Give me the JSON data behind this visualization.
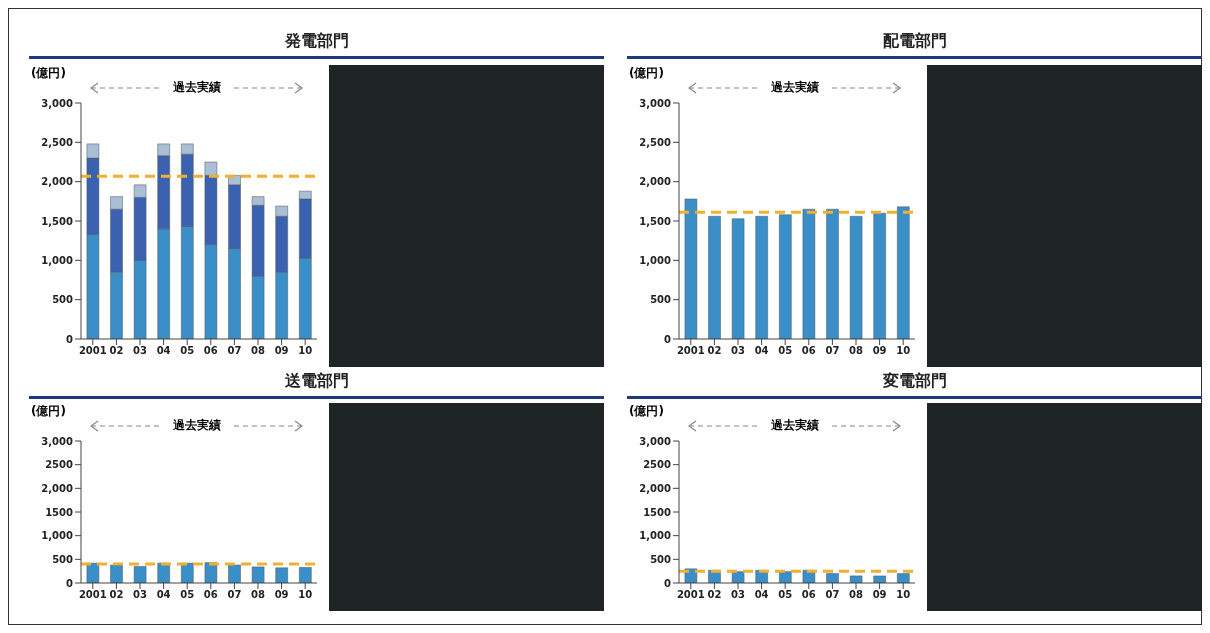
{
  "chart_data": [
    {
      "type": "bar",
      "title": "発電部門",
      "ylabel": "(億円)",
      "annotations": [
        "過去実績"
      ],
      "categories": [
        "2001",
        "02",
        "03",
        "04",
        "05",
        "06",
        "07",
        "08",
        "09",
        "10"
      ],
      "stacked": true,
      "series": [
        {
          "color": "#3a8fc8",
          "values": [
            1330,
            850,
            1000,
            1400,
            1430,
            1200,
            1150,
            800,
            850,
            1030
          ]
        },
        {
          "color": "#3a62b0",
          "values": [
            970,
            800,
            800,
            930,
            920,
            880,
            810,
            900,
            710,
            750
          ]
        },
        {
          "color": "#a9bfd6",
          "values": [
            180,
            160,
            160,
            150,
            130,
            170,
            120,
            110,
            130,
            100
          ]
        }
      ],
      "ylim": [
        0,
        3000
      ],
      "yticks": [
        {
          "value": 0,
          "label": "0"
        },
        {
          "value": 500,
          "label": "500"
        },
        {
          "value": 1000,
          "label": "1,000"
        },
        {
          "value": 1500,
          "label": "1,500"
        },
        {
          "value": 2000,
          "label": "2,000"
        },
        {
          "value": 2500,
          "label": "2,500"
        },
        {
          "value": 3000,
          "label": "3,000"
        }
      ],
      "ref_lines": [
        {
          "axis": "y",
          "value": 2070,
          "color": "#f0b030",
          "line_style": "dashed"
        }
      ],
      "grid": false,
      "legend": false
    },
    {
      "type": "bar",
      "title": "配電部門",
      "ylabel": "(億円)",
      "annotations": [
        "過去実績"
      ],
      "categories": [
        "2001",
        "02",
        "03",
        "04",
        "05",
        "06",
        "07",
        "08",
        "09",
        "10"
      ],
      "color": "#3a8fc8",
      "values": [
        1780,
        1560,
        1530,
        1560,
        1580,
        1650,
        1650,
        1560,
        1600,
        1680
      ],
      "ylim": [
        0,
        3000
      ],
      "yticks": [
        {
          "value": 0,
          "label": "0"
        },
        {
          "value": 500,
          "label": "500"
        },
        {
          "value": 1000,
          "label": "1,000"
        },
        {
          "value": 1500,
          "label": "1,500"
        },
        {
          "value": 2000,
          "label": "2,000"
        },
        {
          "value": 2500,
          "label": "2,500"
        },
        {
          "value": 3000,
          "label": "3,000"
        }
      ],
      "ref_lines": [
        {
          "axis": "y",
          "value": 1610,
          "color": "#f0b030",
          "line_style": "dashed"
        }
      ],
      "grid": false,
      "legend": false
    },
    {
      "type": "bar",
      "title": "送電部門",
      "ylabel": "(億円)",
      "annotations": [
        "過去実績"
      ],
      "categories": [
        "2001",
        "02",
        "03",
        "04",
        "05",
        "06",
        "07",
        "08",
        "09",
        "10"
      ],
      "color": "#3a8fc8",
      "values": [
        420,
        380,
        350,
        420,
        420,
        430,
        380,
        340,
        320,
        330
      ],
      "ylim": [
        0,
        3000
      ],
      "yticks": [
        {
          "value": 0,
          "label": "0"
        },
        {
          "value": 500,
          "label": "500"
        },
        {
          "value": 1000,
          "label": "1,000"
        },
        {
          "value": 1500,
          "label": "1500"
        },
        {
          "value": 2000,
          "label": "2,000"
        },
        {
          "value": 2500,
          "label": "2500"
        },
        {
          "value": 3000,
          "label": "3,000"
        }
      ],
      "ref_lines": [
        {
          "axis": "y",
          "value": 400,
          "color": "#f0b030",
          "line_style": "dashed"
        }
      ],
      "grid": false,
      "legend": false
    },
    {
      "type": "bar",
      "title": "変電部門",
      "ylabel": "(億円)",
      "annotations": [
        "過去実績"
      ],
      "categories": [
        "2001",
        "02",
        "03",
        "04",
        "05",
        "06",
        "07",
        "08",
        "09",
        "10"
      ],
      "color": "#3a8fc8",
      "values": [
        300,
        270,
        240,
        270,
        240,
        270,
        200,
        150,
        150,
        200
      ],
      "ylim": [
        0,
        3000
      ],
      "yticks": [
        {
          "value": 0,
          "label": "0"
        },
        {
          "value": 500,
          "label": "500"
        },
        {
          "value": 1000,
          "label": "1,000"
        },
        {
          "value": 1500,
          "label": "1500"
        },
        {
          "value": 2000,
          "label": "2,000"
        },
        {
          "value": 2500,
          "label": "2500"
        },
        {
          "value": 3000,
          "label": "3,000"
        }
      ],
      "ref_lines": [
        {
          "axis": "y",
          "value": 250,
          "color": "#f0b030",
          "line_style": "dashed"
        }
      ],
      "grid": false,
      "legend": false
    }
  ]
}
